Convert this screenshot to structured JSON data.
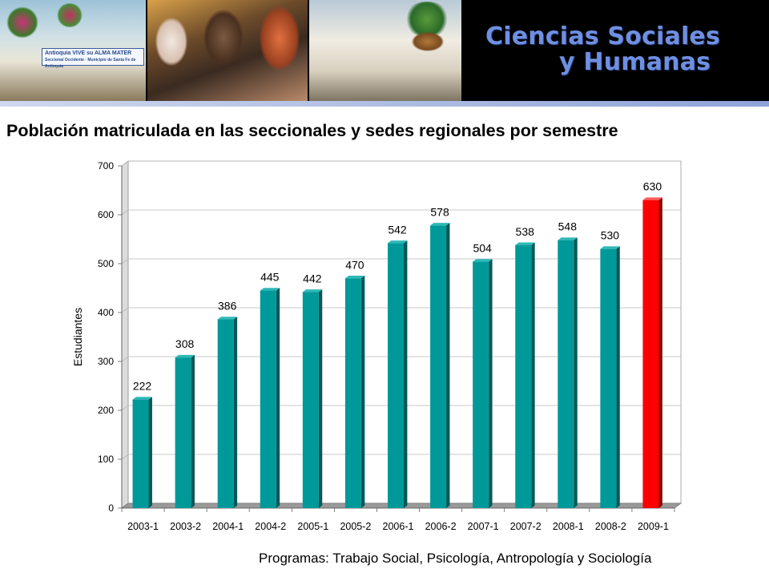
{
  "header": {
    "brand_line1": "Ciencias Sociales",
    "brand_line2": "y Humanas",
    "sign_line1": "Antioquia VIVE su ALMA MATER",
    "sign_line2": "Seccional Occidente · Municipio de Santa Fe de Antioquia"
  },
  "title": "Población matriculada en las seccionales y sedes regionales por semestre",
  "footer": "Programas: Trabajo Social, Psicología, Antropología y Sociología",
  "colors": {
    "bar": "#009999",
    "highlight_bar": "#ff0000",
    "brand_text": "#6f8fe0"
  },
  "chart_data": {
    "type": "bar",
    "categories": [
      "2003-1",
      "2003-2",
      "2004-1",
      "2004-2",
      "2005-1",
      "2005-2",
      "2006-1",
      "2006-2",
      "2007-1",
      "2007-2",
      "2008-1",
      "2008-2",
      "2009-1"
    ],
    "values": [
      222,
      308,
      386,
      445,
      442,
      470,
      542,
      578,
      504,
      538,
      548,
      530,
      630
    ],
    "highlight_category": "2009-1",
    "ylabel": "Estudiantes",
    "xlabel": "",
    "ylim": [
      0,
      700
    ],
    "yticks": [
      0,
      100,
      200,
      300,
      400,
      500,
      600,
      700
    ],
    "grid": true,
    "style": "3d-bars"
  }
}
